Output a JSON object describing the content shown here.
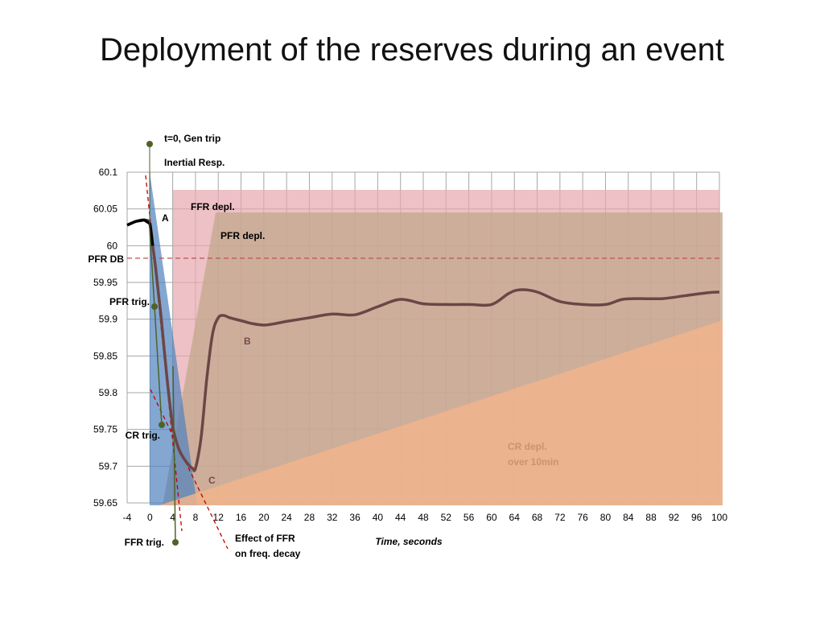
{
  "slide": {
    "title": "Deployment of the reserves during an event"
  },
  "chart_data": {
    "type": "line",
    "xlabel": "Time, seconds",
    "ylabel": "",
    "xlim": [
      -4,
      100
    ],
    "ylim": [
      59.65,
      60.1
    ],
    "x_ticks": [
      -4,
      0,
      4,
      8,
      12,
      16,
      20,
      24,
      28,
      32,
      36,
      40,
      44,
      48,
      52,
      56,
      60,
      64,
      68,
      72,
      76,
      80,
      84,
      88,
      92,
      96,
      100
    ],
    "y_ticks": [
      60.1,
      60.05,
      60,
      59.95,
      59.9,
      59.85,
      59.8,
      59.75,
      59.7,
      59.65
    ],
    "grid": true,
    "series": [
      {
        "name": "",
        "color": "#6b4646",
        "x": [
          -4,
          -2.5,
          -1,
          0,
          0.5,
          1,
          1.5,
          2,
          3,
          4,
          5,
          6,
          7,
          7.5,
          8,
          9,
          10,
          11,
          12,
          13,
          14,
          16,
          18,
          20,
          22,
          24,
          28,
          32,
          36,
          40,
          44,
          48,
          52,
          56,
          60,
          63,
          65,
          68,
          72,
          76,
          80,
          83,
          86,
          90,
          94,
          98,
          100
        ],
        "y": [
          60.028,
          60.033,
          60.035,
          60.03,
          60.0,
          59.97,
          59.935,
          59.9,
          59.82,
          59.755,
          59.725,
          59.71,
          59.7,
          59.697,
          59.697,
          59.74,
          59.82,
          59.88,
          59.902,
          59.905,
          59.902,
          59.898,
          59.894,
          59.892,
          59.894,
          59.897,
          59.902,
          59.907,
          59.906,
          59.917,
          59.927,
          59.921,
          59.92,
          59.92,
          59.92,
          59.935,
          59.94,
          59.937,
          59.924,
          59.92,
          59.92,
          59.927,
          59.928,
          59.928,
          59.932,
          59.936,
          59.937
        ]
      }
    ],
    "dashed_hline": {
      "label": "PFR DB",
      "y": 59.983,
      "color": "#c0504d"
    },
    "regions": [
      {
        "name": "Inertial Resp.",
        "color": "#4f81bd"
      },
      {
        "name": "FFR depl.",
        "color": "#e6a7ac"
      },
      {
        "name": "PFR depl.",
        "color": "#c4a98e"
      },
      {
        "name": "CR depl. over 10min",
        "color": "#f0b48c"
      }
    ],
    "annotations": {
      "t0": "t=0, Gen trip",
      "inertial": "Inertial Resp.",
      "ffr_depl": "FFR depl.",
      "pfr_depl": "PFR depl.",
      "pfr_db": "PFR DB",
      "pfr_trig": "PFR trig.",
      "cr_trig": "CR trig.",
      "ffr_trig": "FFR trig.",
      "effect_line1": "Effect of FFR",
      "effect_line2": "on freq. decay",
      "cr_depl_line1": "CR depl.",
      "cr_depl_line2": "over 10min",
      "point_a": "A",
      "point_b": "B",
      "point_c": "C"
    }
  }
}
